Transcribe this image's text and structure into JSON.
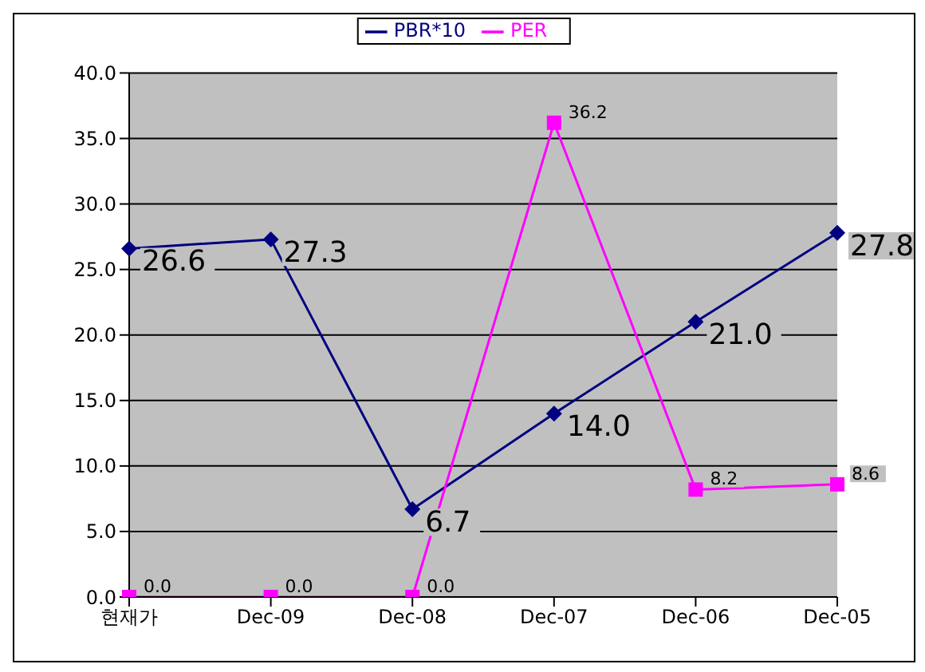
{
  "chart_data": {
    "type": "line",
    "categories": [
      "현재가",
      "Dec-09",
      "Dec-08",
      "Dec-07",
      "Dec-06",
      "Dec-05"
    ],
    "series": [
      {
        "name": "PBR*10",
        "color": "#000080",
        "marker": "diamond",
        "values": [
          26.6,
          27.3,
          6.7,
          14.0,
          21.0,
          27.8
        ],
        "value_labels": [
          "26.6",
          "27.3",
          "6.7",
          "14.0",
          "21.0",
          "27.8"
        ]
      },
      {
        "name": "PER",
        "color": "#ff00ff",
        "marker": "square",
        "values": [
          0.0,
          0.0,
          0.0,
          36.2,
          8.2,
          8.6
        ],
        "value_labels": [
          "0.0",
          "0.0",
          "0.0",
          "36.2",
          "8.2",
          "8.6"
        ]
      }
    ],
    "ylim": [
      0,
      40
    ],
    "yticks": [
      {
        "value": 0,
        "label": "0.0"
      },
      {
        "value": 5,
        "label": "5.0"
      },
      {
        "value": 10,
        "label": "10.0"
      },
      {
        "value": 15,
        "label": "15.0"
      },
      {
        "value": 20,
        "label": "20.0"
      },
      {
        "value": 25,
        "label": "25.0"
      },
      {
        "value": 30,
        "label": "30.0"
      },
      {
        "value": 35,
        "label": "35.0"
      },
      {
        "value": 40,
        "label": "40.0"
      }
    ],
    "grid": "y",
    "legend": "top"
  }
}
